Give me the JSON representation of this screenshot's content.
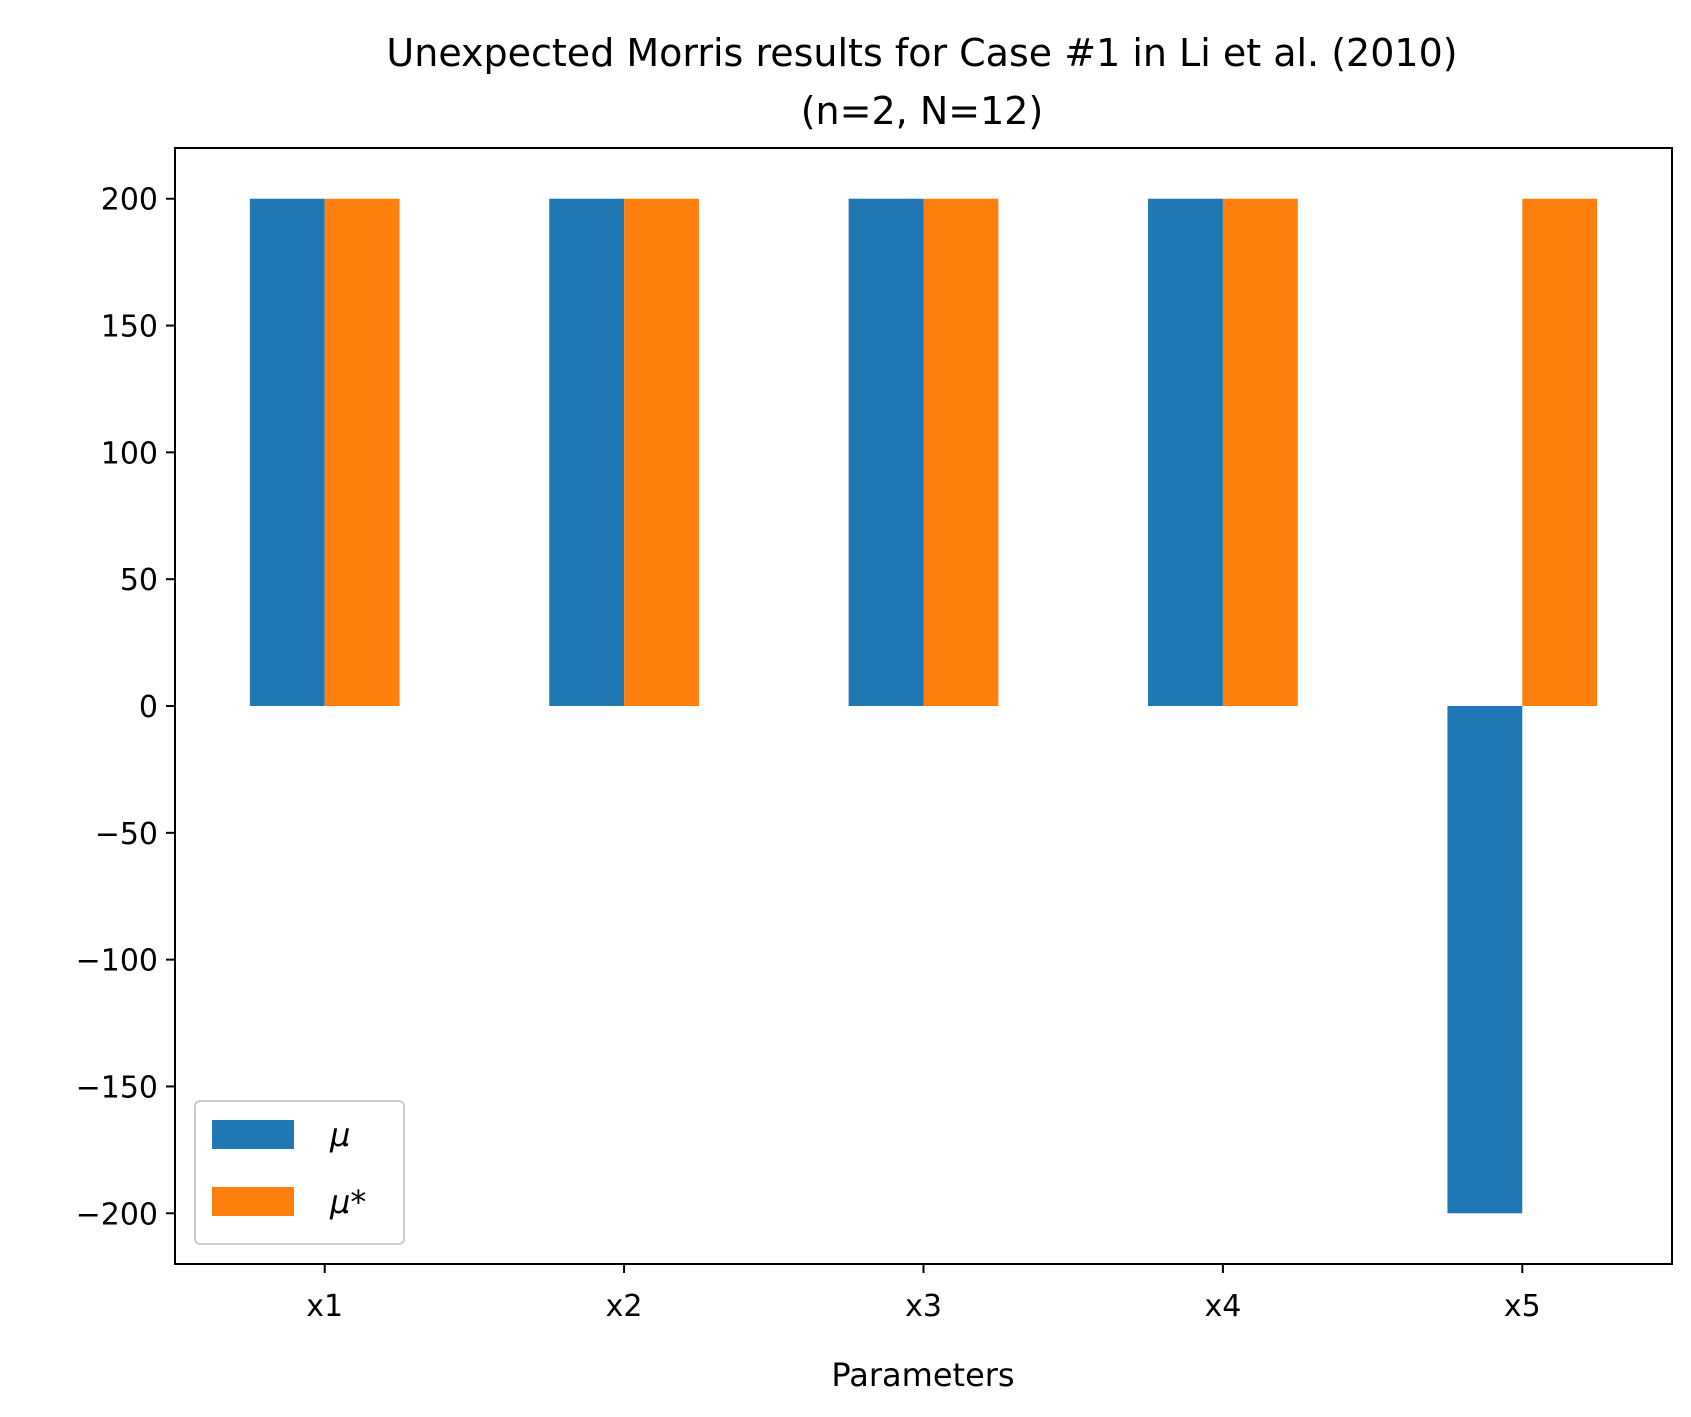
{
  "chart_data": {
    "type": "bar",
    "title": "Unexpected Morris results for Case #1 in Li et al. (2010)",
    "subtitle": "(n=2, N=12)",
    "xlabel": "Parameters",
    "ylabel": "",
    "categories": [
      "x1",
      "x2",
      "x3",
      "x4",
      "x5"
    ],
    "series": [
      {
        "name": "μ",
        "color": "#1f77b4",
        "values": [
          200,
          200,
          200,
          200,
          -200
        ]
      },
      {
        "name": "μ*",
        "color": "#ff7f0e",
        "values": [
          200,
          200,
          200,
          200,
          200
        ]
      }
    ],
    "ylim": [
      -220,
      220
    ],
    "yticks": [
      -200,
      -150,
      -100,
      -50,
      0,
      50,
      100,
      150,
      200
    ],
    "ytick_labels": [
      "−200",
      "−150",
      "−100",
      "−50",
      "0",
      "50",
      "100",
      "150",
      "200"
    ],
    "grid": false,
    "legend_position": "lower-left"
  }
}
